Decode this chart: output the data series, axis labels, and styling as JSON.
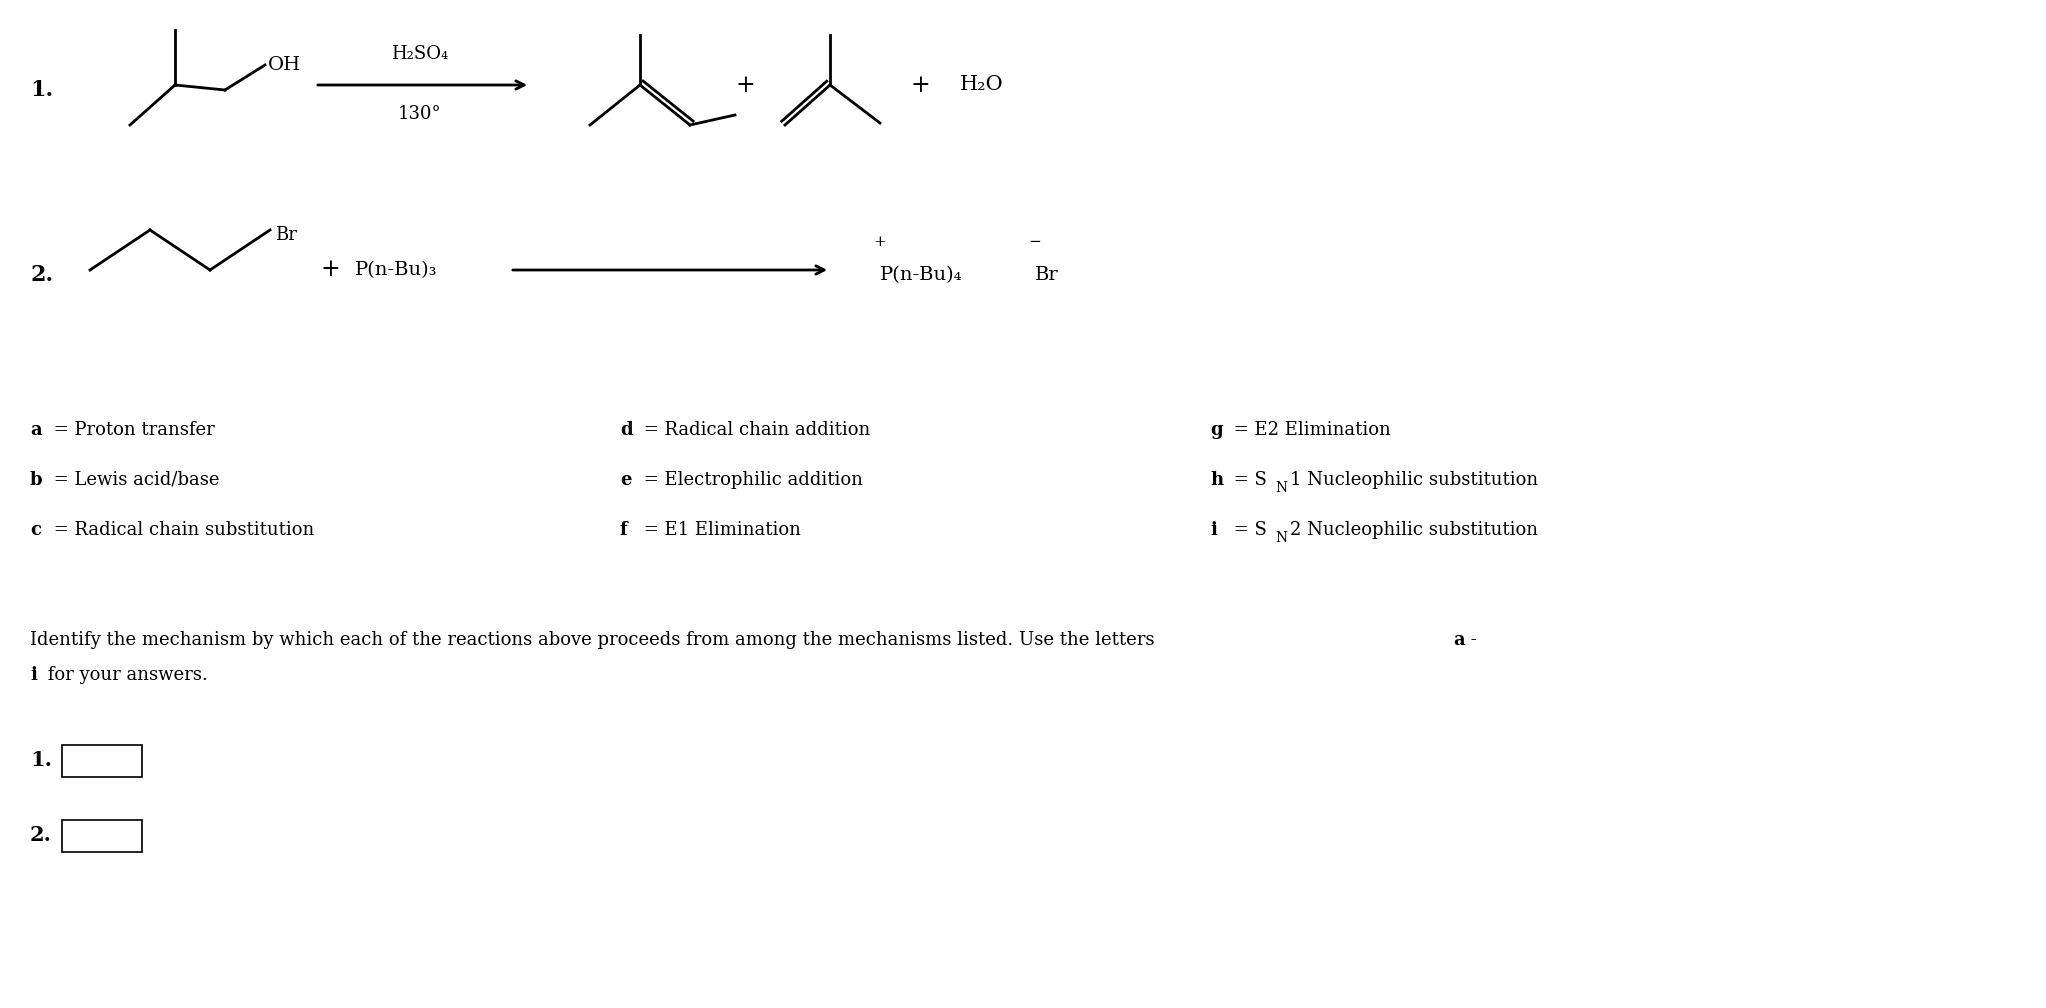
{
  "background_color": "#ffffff",
  "fig_width": 20.46,
  "fig_height": 10.08,
  "text_fontsize": 14,
  "reaction1_num": "1.",
  "reaction1_reagent": "H₂SO₄",
  "reaction1_condition": "130°",
  "reaction1_plus1": "+",
  "reaction1_plus2": "+",
  "reaction1_product2": "H₂O",
  "reaction2_num": "2.",
  "reaction2_reactant2": "P(n-Bu)₃",
  "reaction2_product1": "P(n-Bu)₄",
  "reaction2_product2": "Br",
  "leg_col1": [
    [
      "a",
      " = Proton transfer"
    ],
    [
      "b",
      " = Lewis acid/base"
    ],
    [
      "c",
      " = Radical chain substitution"
    ]
  ],
  "leg_col2": [
    [
      "d",
      " = Radical chain addition"
    ],
    [
      "e",
      " = Electrophilic addition"
    ],
    [
      "f",
      " = E1 Elimination"
    ]
  ],
  "leg_col3_g": [
    "g",
    " = E2 Elimination"
  ],
  "leg_col3_h": [
    "h",
    " = S",
    "N",
    "1 Nucleophilic substitution"
  ],
  "leg_col3_i": [
    "i",
    " = S",
    "N",
    "2 Nucleophilic substitution"
  ],
  "instruction1": "Identify the mechanism by which each of the reactions above proceeds from among the mechanisms listed. Use the letters ",
  "instruction1b": "a",
  "instruction1c": " -",
  "instruction2": "i",
  "instruction2b": " for your answers.",
  "ans_label1": "1.",
  "ans_label2": "2."
}
